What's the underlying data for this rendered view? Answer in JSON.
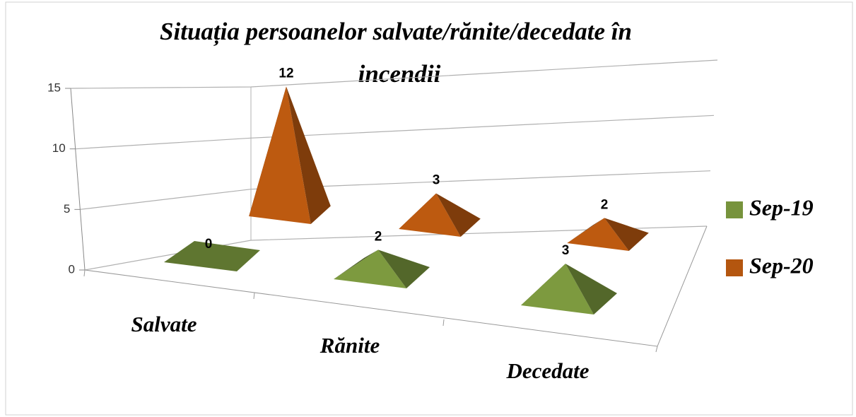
{
  "chart_data": {
    "type": "pyramid3d",
    "title": "Situația persoanelor salvate/rănite/decedate în incendii",
    "categories": [
      "Salvate",
      "Rănite",
      "Decedate"
    ],
    "series": [
      {
        "name": "Sep-19",
        "color": "#77933c",
        "values": [
          0,
          2,
          3
        ]
      },
      {
        "name": "Sep-20",
        "color": "#b4560f",
        "values": [
          12,
          3,
          2
        ]
      }
    ],
    "ylim": [
      0,
      15
    ],
    "yticks": [
      0,
      5,
      10,
      15
    ],
    "grid": true,
    "legend": "right"
  }
}
